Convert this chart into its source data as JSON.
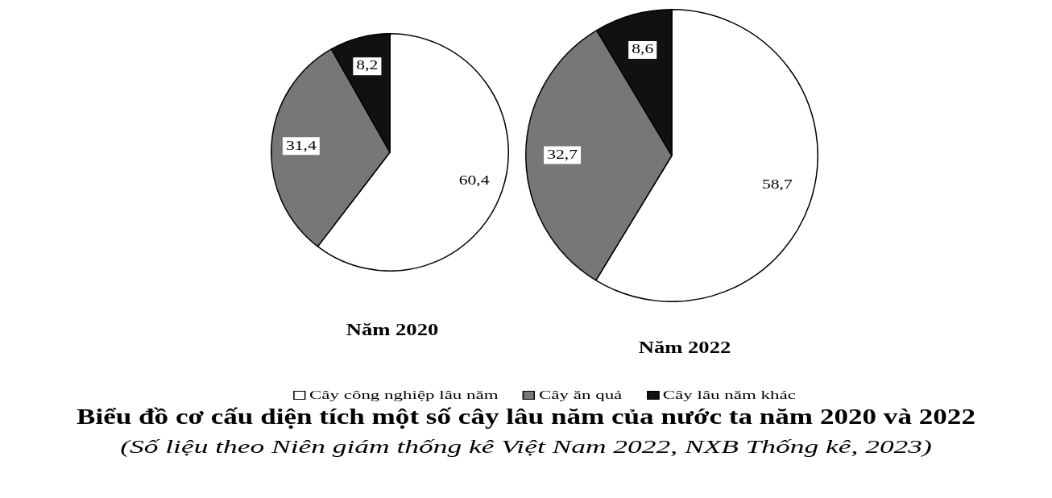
{
  "chart_data": {
    "type": "pie",
    "title": "Biểu đồ cơ cấu diện tích một số cây lâu năm của nước ta năm 2020 và 2022",
    "annotations": [
      "(Số liệu theo Niên giám thống kê Việt Nam 2022, NXB Thống kê, 2023)"
    ],
    "categories": [
      "Cây công nghiệp lâu năm",
      "Cây ăn quả",
      "Cây lâu năm khác"
    ],
    "colors": [
      "#ffffff",
      "#777777",
      "#111111"
    ],
    "series": [
      {
        "name": "Năm 2020",
        "values": [
          60.4,
          31.4,
          8.2
        ],
        "value_labels": [
          "60,4",
          "31,4",
          "8,2"
        ]
      },
      {
        "name": "Năm 2022",
        "values": [
          58.7,
          32.7,
          8.6
        ],
        "value_labels": [
          "58,7",
          "32,7",
          "8,6"
        ]
      }
    ],
    "legend": "bottom"
  }
}
